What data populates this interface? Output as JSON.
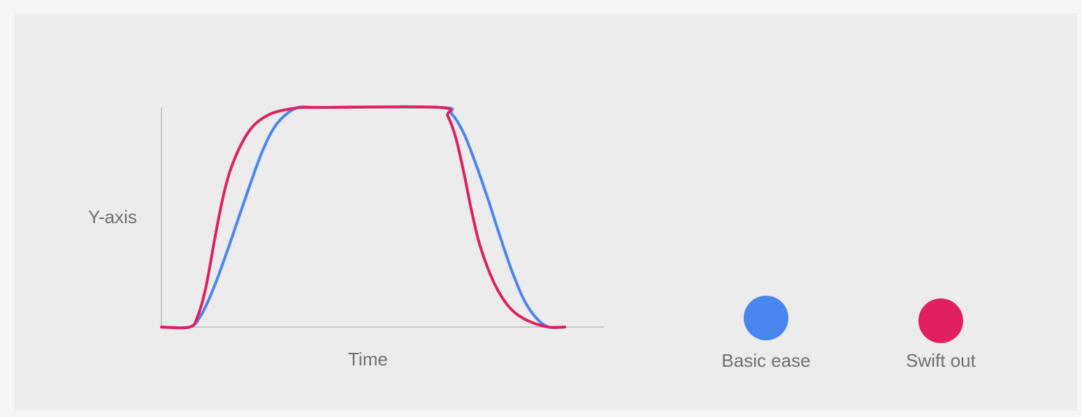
{
  "chart_data": {
    "type": "line",
    "title": "",
    "xlabel": "Time",
    "ylabel": "Y-axis",
    "xlim": [
      0,
      100
    ],
    "ylim": [
      0,
      1
    ],
    "grid": false,
    "legend_placement": "right",
    "series": [
      {
        "name": "Basic ease",
        "color": "#4a86f0",
        "x": [
          0,
          7,
          10,
          13,
          16,
          19,
          22,
          25,
          28,
          31,
          34,
          37,
          40,
          69,
          72,
          75,
          78,
          81,
          84,
          87,
          90,
          93,
          96,
          100
        ],
        "y": [
          0,
          0,
          0.06,
          0.18,
          0.33,
          0.49,
          0.65,
          0.8,
          0.91,
          0.97,
          1.0,
          1.0,
          1.0,
          1.0,
          0.97,
          0.88,
          0.74,
          0.58,
          0.41,
          0.25,
          0.12,
          0.04,
          0.0,
          0.0
        ]
      },
      {
        "name": "Swift out",
        "color": "#e0205f",
        "x": [
          0,
          7,
          9,
          11,
          13,
          15,
          17,
          20,
          23,
          27,
          31,
          35,
          40,
          69,
          71,
          73,
          75,
          77,
          79,
          82,
          85,
          88,
          92,
          96,
          100
        ],
        "y": [
          0,
          0,
          0.05,
          0.18,
          0.38,
          0.57,
          0.71,
          0.84,
          0.92,
          0.97,
          0.99,
          1.0,
          1.0,
          1.0,
          0.96,
          0.86,
          0.7,
          0.52,
          0.37,
          0.22,
          0.12,
          0.06,
          0.02,
          0.0,
          0.0
        ]
      }
    ]
  },
  "legend": [
    {
      "label": "Basic ease",
      "color": "#4a86f0"
    },
    {
      "label": "Swift out",
      "color": "#e0205f"
    }
  ]
}
